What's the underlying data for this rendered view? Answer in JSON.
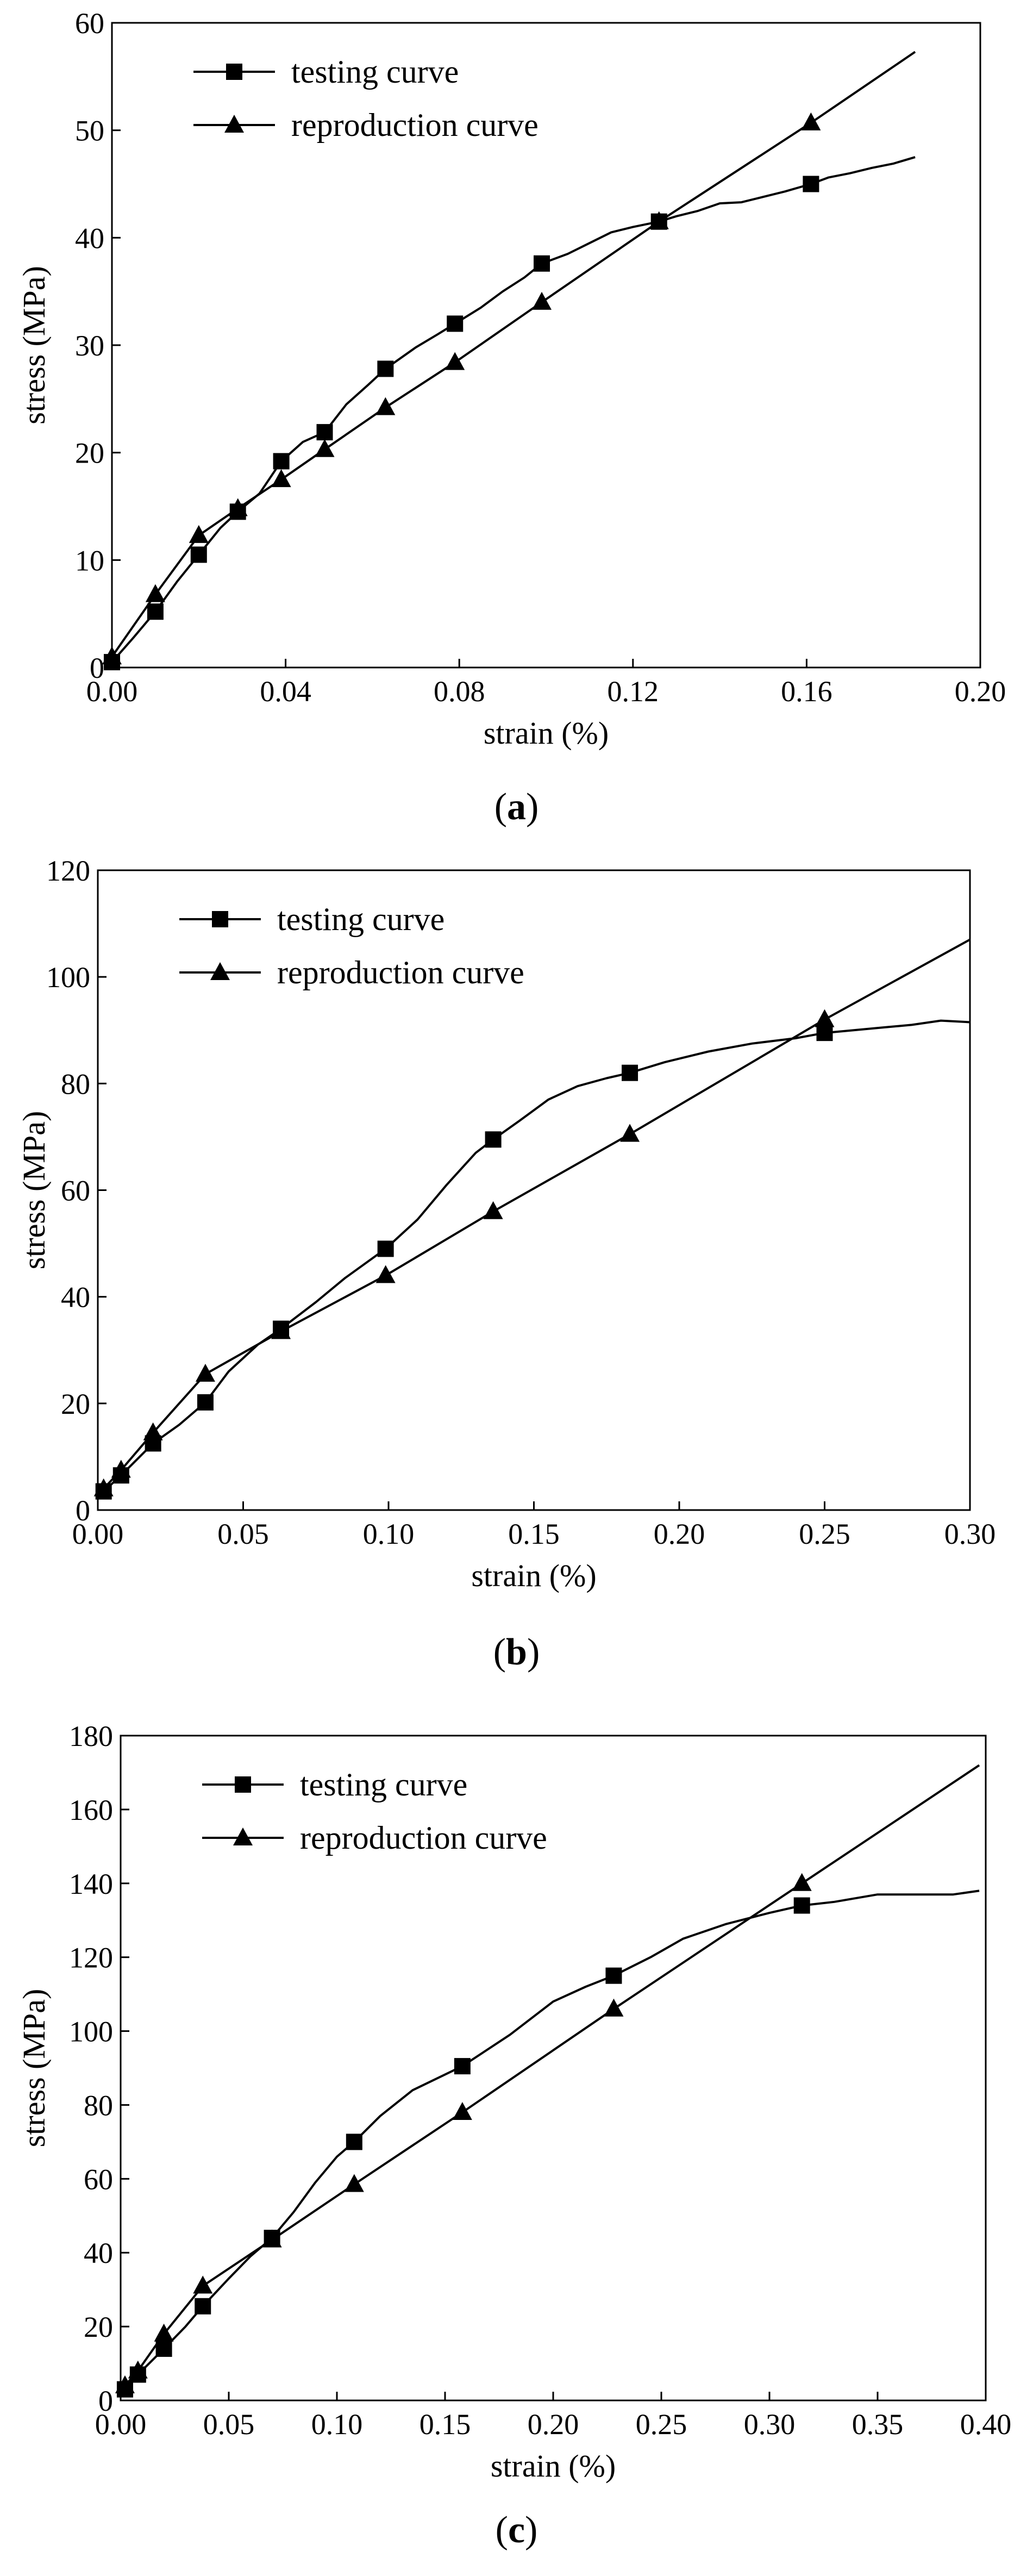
{
  "figure": {
    "panels": [
      {
        "caption_open": "(",
        "caption_letter": "a",
        "caption_close": ")"
      },
      {
        "caption_open": "(",
        "caption_letter": "b",
        "caption_close": ")"
      },
      {
        "caption_open": "(",
        "caption_letter": "c",
        "caption_close": ")"
      }
    ]
  },
  "chart_data": [
    {
      "type": "line",
      "xlabel": "strain (%)",
      "ylabel": "stress (MPa)",
      "xlim": [
        0,
        0.2
      ],
      "ylim": [
        0,
        60
      ],
      "xticks": [
        0,
        0.04,
        0.08,
        0.12,
        0.16,
        0.2
      ],
      "xtick_labels": [
        "0.00",
        "0.04",
        "0.08",
        "0.12",
        "0.16",
        "0.20"
      ],
      "yticks": [
        0,
        10,
        20,
        30,
        40,
        50,
        60
      ],
      "ytick_labels": [
        "0",
        "10",
        "20",
        "30",
        "40",
        "50",
        "60"
      ],
      "legend_position": "top-left",
      "series": [
        {
          "name": "testing curve",
          "marker": "square",
          "x": [
            0,
            0.005,
            0.01,
            0.015,
            0.02,
            0.025,
            0.029,
            0.034,
            0.039,
            0.044,
            0.049,
            0.054,
            0.059,
            0.063,
            0.07,
            0.075,
            0.079,
            0.085,
            0.09,
            0.095,
            0.099,
            0.105,
            0.11,
            0.115,
            0.12,
            0.126,
            0.13,
            0.135,
            0.14,
            0.145,
            0.15,
            0.155,
            0.161,
            0.165,
            0.17,
            0.175,
            0.18,
            0.185
          ],
          "y": [
            0.5,
            2.8,
            5.2,
            8,
            10.5,
            13,
            14.5,
            16.2,
            19.2,
            21,
            21.9,
            24.5,
            26.3,
            27.8,
            29.8,
            31,
            32,
            33.5,
            35,
            36.3,
            37.6,
            38.5,
            39.5,
            40.5,
            41,
            41.5,
            42,
            42.5,
            43.2,
            43.3,
            43.8,
            44.3,
            45,
            45.6,
            46,
            46.5,
            46.9,
            47.5
          ],
          "marker_x": [
            0,
            0.01,
            0.02,
            0.029,
            0.039,
            0.049,
            0.063,
            0.079,
            0.099,
            0.126,
            0.161
          ],
          "marker_y": [
            0.5,
            5.2,
            10.5,
            14.5,
            19.2,
            21.9,
            27.8,
            32,
            37.6,
            41.5,
            45
          ]
        },
        {
          "name": "reproduction curve",
          "marker": "triangle",
          "x": [
            0,
            0.01,
            0.02,
            0.029,
            0.039,
            0.049,
            0.063,
            0.079,
            0.099,
            0.126,
            0.161,
            0.185
          ],
          "y": [
            1,
            6.8,
            12.3,
            14.8,
            17.5,
            20.3,
            24.2,
            28.4,
            34,
            41.5,
            50.7,
            57.3
          ],
          "marker_x": [
            0,
            0.01,
            0.02,
            0.029,
            0.039,
            0.049,
            0.063,
            0.079,
            0.099,
            0.126,
            0.161
          ],
          "marker_y": [
            1,
            6.8,
            12.3,
            14.8,
            17.5,
            20.3,
            24.2,
            28.4,
            34,
            41.5,
            50.7
          ]
        }
      ]
    },
    {
      "type": "line",
      "xlabel": "strain (%)",
      "ylabel": "stress (MPa)",
      "xlim": [
        0,
        0.3
      ],
      "ylim": [
        0,
        120
      ],
      "xticks": [
        0,
        0.05,
        0.1,
        0.15,
        0.2,
        0.25,
        0.3
      ],
      "xtick_labels": [
        "0.00",
        "0.05",
        "0.10",
        "0.15",
        "0.20",
        "0.25",
        "0.30"
      ],
      "yticks": [
        0,
        20,
        40,
        60,
        80,
        100,
        120
      ],
      "ytick_labels": [
        "0",
        "20",
        "40",
        "60",
        "80",
        "100",
        "120"
      ],
      "legend_position": "top-left",
      "series": [
        {
          "name": "testing curve",
          "marker": "square",
          "x": [
            0.002,
            0.008,
            0.019,
            0.028,
            0.037,
            0.045,
            0.055,
            0.063,
            0.075,
            0.085,
            0.099,
            0.11,
            0.12,
            0.13,
            0.136,
            0.145,
            0.155,
            0.165,
            0.175,
            0.183,
            0.195,
            0.21,
            0.225,
            0.24,
            0.25,
            0.26,
            0.27,
            0.28,
            0.29,
            0.3
          ],
          "y": [
            3.5,
            6.5,
            12.5,
            16,
            20.2,
            26,
            31,
            34,
            39,
            43.5,
            49,
            54.5,
            61,
            67,
            69.5,
            73,
            77,
            79.5,
            81,
            82,
            84,
            86,
            87.5,
            88.5,
            89.5,
            90,
            90.5,
            91,
            91.8,
            91.5
          ],
          "marker_x": [
            0.002,
            0.008,
            0.019,
            0.037,
            0.063,
            0.099,
            0.136,
            0.183,
            0.25
          ],
          "marker_y": [
            3.5,
            6.5,
            12.5,
            20.2,
            34,
            49,
            69.5,
            82,
            89.5
          ]
        },
        {
          "name": "reproduction curve",
          "marker": "triangle",
          "x": [
            0.002,
            0.008,
            0.019,
            0.037,
            0.063,
            0.099,
            0.136,
            0.183,
            0.25,
            0.3
          ],
          "y": [
            4,
            7.5,
            14.5,
            25.5,
            33.5,
            44,
            56,
            70.5,
            92,
            107
          ],
          "marker_x": [
            0.002,
            0.008,
            0.019,
            0.037,
            0.063,
            0.099,
            0.136,
            0.183,
            0.25
          ],
          "marker_y": [
            4,
            7.5,
            14.5,
            25.5,
            33.5,
            44,
            56,
            70.5,
            92
          ]
        }
      ]
    },
    {
      "type": "line",
      "xlabel": "strain (%)",
      "ylabel": "stress (MPa)",
      "xlim": [
        0,
        0.4
      ],
      "ylim": [
        0,
        180
      ],
      "xticks": [
        0,
        0.05,
        0.1,
        0.15,
        0.2,
        0.25,
        0.3,
        0.35,
        0.4
      ],
      "xtick_labels": [
        "0.00",
        "0.05",
        "0.10",
        "0.15",
        "0.20",
        "0.25",
        "0.30",
        "0.35",
        "0.40"
      ],
      "yticks": [
        0,
        20,
        40,
        60,
        80,
        100,
        120,
        140,
        160,
        180
      ],
      "ytick_labels": [
        "0",
        "20",
        "40",
        "60",
        "80",
        "100",
        "120",
        "140",
        "160",
        "180"
      ],
      "legend_position": "top-left",
      "series": [
        {
          "name": "testing curve",
          "marker": "square",
          "x": [
            0.002,
            0.008,
            0.02,
            0.03,
            0.038,
            0.05,
            0.06,
            0.07,
            0.08,
            0.09,
            0.1,
            0.108,
            0.12,
            0.135,
            0.158,
            0.18,
            0.2,
            0.215,
            0.228,
            0.245,
            0.26,
            0.28,
            0.3,
            0.315,
            0.33,
            0.35,
            0.37,
            0.385,
            0.397
          ],
          "y": [
            3,
            7,
            14,
            20,
            25.5,
            33,
            39,
            44,
            51,
            59,
            66,
            70,
            77,
            84,
            90.5,
            99,
            108,
            112,
            115,
            120,
            125,
            129,
            132,
            134,
            135,
            137,
            137,
            137,
            138
          ],
          "marker_x": [
            0.002,
            0.008,
            0.02,
            0.038,
            0.07,
            0.108,
            0.158,
            0.228,
            0.315
          ],
          "marker_y": [
            3,
            7,
            14,
            25.5,
            44,
            70,
            90.5,
            115,
            134
          ]
        },
        {
          "name": "reproduction curve",
          "marker": "triangle",
          "x": [
            0.002,
            0.008,
            0.02,
            0.038,
            0.07,
            0.108,
            0.158,
            0.228,
            0.315,
            0.397
          ],
          "y": [
            4,
            8,
            18,
            31,
            43.5,
            58.5,
            78,
            106,
            140,
            172
          ],
          "marker_x": [
            0.002,
            0.008,
            0.02,
            0.038,
            0.07,
            0.108,
            0.158,
            0.228,
            0.315
          ],
          "marker_y": [
            4,
            8,
            18,
            31,
            43.5,
            58.5,
            78,
            106,
            140
          ]
        }
      ]
    }
  ]
}
